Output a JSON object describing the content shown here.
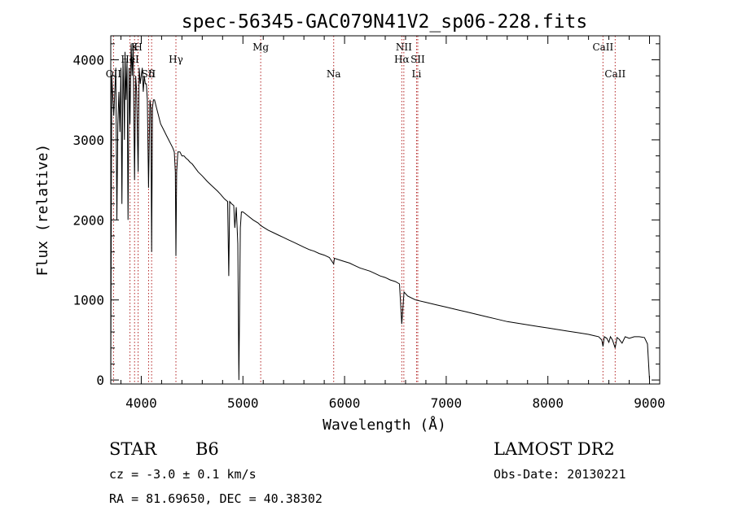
{
  "chart_data": {
    "type": "line",
    "title": "spec-56345-GAC079N41V2_sp06-228.fits",
    "xlabel": "Wavelength (Å)",
    "ylabel": "Flux (relative)",
    "xlim": [
      3700,
      9100
    ],
    "ylim": [
      -50,
      4300
    ],
    "x_ticks": [
      4000,
      5000,
      6000,
      7000,
      8000,
      9000
    ],
    "y_ticks": [
      0,
      1000,
      2000,
      3000,
      4000
    ],
    "grid": false,
    "line_color": "#000000",
    "marker_color": "#b22222",
    "lines": [
      {
        "label": "OII",
        "wavelength": 3727,
        "row": 3
      },
      {
        "label": "K",
        "wavelength": 3934,
        "row": 1
      },
      {
        "label": "H",
        "wavelength": 3969,
        "row": 1
      },
      {
        "label": "HeI",
        "wavelength": 3889,
        "row": 2
      },
      {
        "label": "δ",
        "wavelength": 4102,
        "row": 3
      },
      {
        "label": "SII",
        "wavelength": 4072,
        "row": 3
      },
      {
        "label": "Hγ",
        "wavelength": 4341,
        "row": 2
      },
      {
        "label": "Mg",
        "wavelength": 5175,
        "row": 1
      },
      {
        "label": "Na",
        "wavelength": 5893,
        "row": 3
      },
      {
        "label": "NII",
        "wavelength": 6583,
        "row": 1
      },
      {
        "label": "Hα",
        "wavelength": 6563,
        "row": 2
      },
      {
        "label": "SII",
        "wavelength": 6720,
        "row": 2
      },
      {
        "label": "Li",
        "wavelength": 6708,
        "row": 3
      },
      {
        "label": "CaII",
        "wavelength": 8542,
        "row": 1
      },
      {
        "label": "CaII",
        "wavelength": 8662,
        "row": 3
      }
    ],
    "series": [
      {
        "x": [
          3700,
          3710,
          3730,
          3750,
          3760,
          3770,
          3780,
          3790,
          3800,
          3810,
          3820,
          3830,
          3835,
          3840,
          3850,
          3860,
          3870,
          3880,
          3889,
          3900,
          3910,
          3920,
          3934,
          3945,
          3955,
          3969,
          3980,
          3990,
          4000,
          4010,
          4020,
          4030,
          4040,
          4050,
          4060,
          4072,
          4085,
          4095,
          4102,
          4110,
          4120,
          4130,
          4150,
          4170,
          4190,
          4210,
          4230,
          4250,
          4270,
          4290,
          4310,
          4325,
          4335,
          4341,
          4348,
          4360,
          4380,
          4400,
          4420,
          4440,
          4460,
          4480,
          4500,
          4530,
          4560,
          4600,
          4650,
          4700,
          4750,
          4780,
          4800,
          4820,
          4850,
          4861,
          4870,
          4890,
          4910,
          4920,
          4935,
          4950,
          4960,
          4975,
          4985,
          5000,
          5020,
          5050,
          5100,
          5150,
          5175,
          5200,
          5250,
          5300,
          5350,
          5400,
          5450,
          5500,
          5550,
          5600,
          5650,
          5700,
          5750,
          5800,
          5850,
          5893,
          5900,
          5950,
          6000,
          6050,
          6100,
          6150,
          6200,
          6250,
          6300,
          6350,
          6400,
          6450,
          6500,
          6540,
          6563,
          6585,
          6620,
          6700,
          6800,
          6900,
          7000,
          7100,
          7200,
          7300,
          7400,
          7500,
          7600,
          7700,
          7800,
          7900,
          8000,
          8100,
          8200,
          8300,
          8400,
          8450,
          8500,
          8530,
          8542,
          8555,
          8580,
          8600,
          8615,
          8635,
          8662,
          8680,
          8700,
          8730,
          8760,
          8800,
          8850,
          8900,
          8950,
          8980,
          9000
        ],
        "y": [
          0,
          3800,
          3300,
          3900,
          2000,
          3200,
          3600,
          3100,
          3900,
          2200,
          4000,
          3500,
          3000,
          4100,
          3500,
          4000,
          2000,
          3900,
          3200,
          4200,
          3800,
          4200,
          2500,
          3800,
          3600,
          2600,
          3900,
          3700,
          3800,
          3900,
          3600,
          3800,
          3700,
          3700,
          3500,
          2400,
          3500,
          3400,
          1600,
          3400,
          3500,
          3500,
          3400,
          3300,
          3200,
          3150,
          3100,
          3050,
          3000,
          2950,
          2900,
          2850,
          2600,
          1550,
          2600,
          2850,
          2850,
          2800,
          2800,
          2770,
          2750,
          2720,
          2700,
          2650,
          2600,
          2550,
          2480,
          2420,
          2360,
          2320,
          2290,
          2260,
          2230,
          1300,
          2230,
          2200,
          2180,
          1900,
          2160,
          1700,
          0,
          1900,
          2100,
          2100,
          2080,
          2050,
          2000,
          1960,
          1930,
          1910,
          1870,
          1840,
          1810,
          1780,
          1750,
          1720,
          1690,
          1660,
          1630,
          1610,
          1580,
          1560,
          1530,
          1450,
          1520,
          1500,
          1480,
          1460,
          1430,
          1400,
          1380,
          1360,
          1330,
          1300,
          1280,
          1250,
          1230,
          1200,
          700,
          1100,
          1050,
          1000,
          970,
          940,
          910,
          880,
          850,
          820,
          790,
          760,
          730,
          710,
          690,
          670,
          650,
          630,
          610,
          590,
          570,
          555,
          540,
          500,
          420,
          540,
          520,
          470,
          540,
          500,
          400,
          530,
          510,
          460,
          540,
          520,
          540,
          540,
          530,
          450,
          0
        ]
      }
    ]
  },
  "info": {
    "object_class": "STAR",
    "subclass": "B6",
    "survey": "LAMOST DR2",
    "cz": "cz = -3.0 ± 0.1 km/s",
    "obs_date": "Obs-Date: 20130221",
    "coords": "RA =  81.69650, DEC =  40.38302"
  }
}
